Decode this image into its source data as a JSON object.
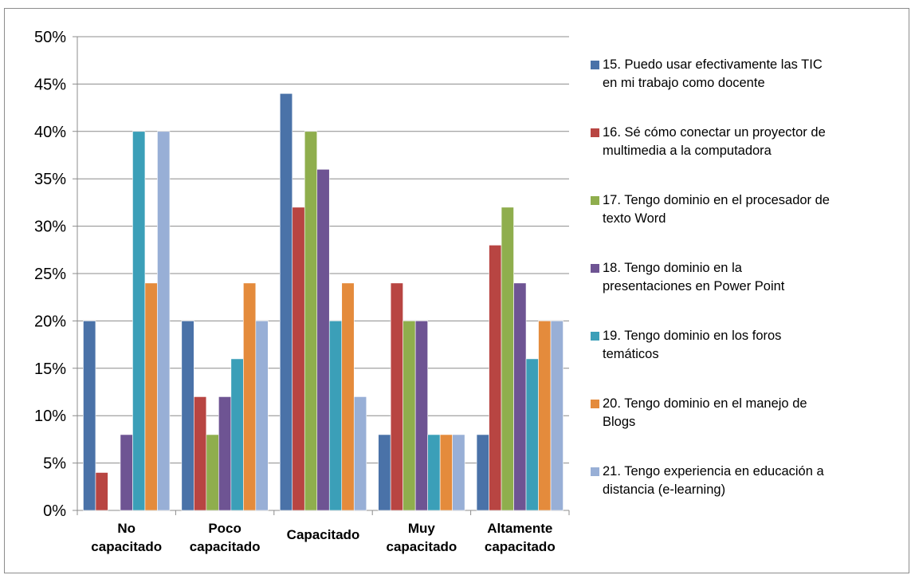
{
  "chart_data": {
    "type": "bar",
    "title": "",
    "xlabel": "",
    "ylabel": "",
    "ylim": [
      0,
      50
    ],
    "yticks": [
      "0%",
      "5%",
      "10%",
      "15%",
      "20%",
      "25%",
      "30%",
      "35%",
      "40%",
      "45%",
      "50%"
    ],
    "grid": true,
    "legend_position": "right",
    "categories": [
      "No\ncapacitado",
      "Poco\ncapacitado",
      "Capacitado",
      "Muy\ncapacitado",
      "Altamente\ncapacitado"
    ],
    "series": [
      {
        "name": "15. Puedo usar efectivamente las TIC\nen mi trabajo como docente",
        "color": "#4a72a8",
        "values": [
          20,
          20,
          44,
          8,
          8
        ]
      },
      {
        "name": "16. Sé cómo conectar un proyector de\nmultimedia a la computadora",
        "color": "#b84542",
        "values": [
          4,
          12,
          32,
          24,
          28
        ]
      },
      {
        "name": "17. Tengo dominio en el procesador de\ntexto Word",
        "color": "#8fae4d",
        "values": [
          0,
          8,
          40,
          20,
          32
        ]
      },
      {
        "name": "18. Tengo dominio en la\npresentaciones en Power Point",
        "color": "#6e5493",
        "values": [
          8,
          12,
          36,
          20,
          24
        ]
      },
      {
        "name": "19. Tengo dominio en los foros\ntemáticos",
        "color": "#3b9fb8",
        "values": [
          40,
          16,
          20,
          8,
          16
        ]
      },
      {
        "name": "20. Tengo dominio en el manejo de\nBlogs",
        "color": "#e48b3c",
        "values": [
          24,
          24,
          24,
          8,
          20
        ]
      },
      {
        "name": "21. Tengo experiencia en educación a\ndistancia (e-learning)",
        "color": "#98afd6",
        "values": [
          40,
          20,
          12,
          8,
          20
        ]
      }
    ]
  }
}
